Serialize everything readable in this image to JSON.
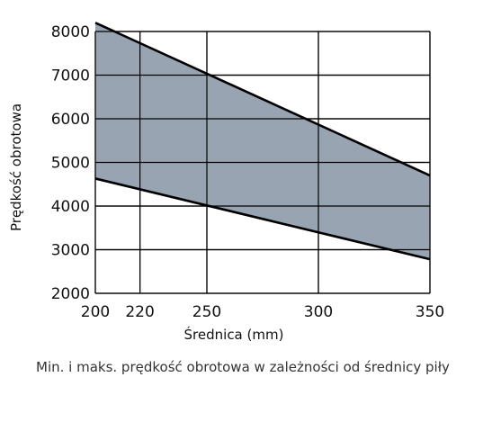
{
  "chart_data": {
    "type": "area",
    "xlabel": "Średnica (mm)",
    "ylabel": "Prędkość obrotowa",
    "x_ticks": [
      "200",
      "220",
      "250",
      "300",
      "350"
    ],
    "y_ticks": [
      "2000",
      "3000",
      "4000",
      "5000",
      "6000",
      "7000",
      "8000"
    ],
    "xlim": [
      200,
      350
    ],
    "ylim": [
      2000,
      8000
    ],
    "grid": true,
    "series": [
      {
        "name": "maks.",
        "x": [
          200,
          350
        ],
        "values": [
          8200,
          4700
        ]
      },
      {
        "name": "min.",
        "x": [
          200,
          350
        ],
        "values": [
          4630,
          2780
        ]
      }
    ],
    "fill_color": "#98a4b1",
    "line_color": "#000000"
  },
  "caption": "Min. i maks. prędkość obrotowa w zależności od średnicy piły"
}
